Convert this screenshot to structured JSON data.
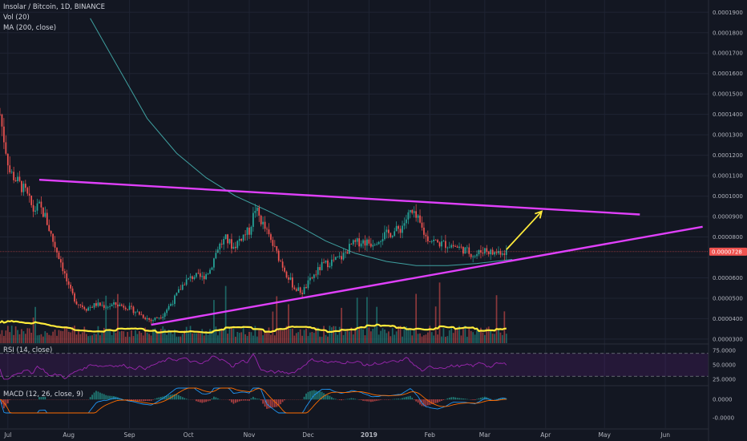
{
  "header": {
    "symbol_line": "Insolar / Bitcoin, 1D, BINANCE",
    "vol_line": "Vol (20)",
    "ma_line": "MA (200, close)"
  },
  "panes": {
    "rsi_label": "RSI (14, close)",
    "macd_label": "MACD (12, 26, close, 9)"
  },
  "colors": {
    "background": "#131722",
    "up": "#26a69a",
    "down": "#ef5350",
    "triangle": "#e040fb",
    "arrow": "#ffeb3b",
    "volume_ma": "#ffeb3b",
    "ma200": "#3fa0a0",
    "rsi_line": "#9c27b0",
    "macd_line": "#2196f3",
    "signal_line": "#ff6d00",
    "price_marker": "#ef5350"
  },
  "chart_data": [
    {
      "type": "candlestick",
      "title": "Insolar / Bitcoin, 1D, BINANCE",
      "x_range": [
        "2018-06-27",
        "2019-06-23"
      ],
      "y_range": [
        2.8e-05,
        0.000196
      ],
      "y_ticks": [
        "0.0000300",
        "0.0000400",
        "0.0000500",
        "0.0000600",
        "0.0000700",
        "0.0000800",
        "0.0000900",
        "0.0001000",
        "0.0001100",
        "0.0001200",
        "0.0001300",
        "0.0001400",
        "0.0001500",
        "0.0001600",
        "0.0001700",
        "0.0001800",
        "0.0001900"
      ],
      "x_ticks": [
        {
          "label": "Jul",
          "date": "2018-07-01"
        },
        {
          "label": "Aug",
          "date": "2018-08-01"
        },
        {
          "label": "Sep",
          "date": "2018-09-01"
        },
        {
          "label": "Oct",
          "date": "2018-10-01"
        },
        {
          "label": "Nov",
          "date": "2018-11-01"
        },
        {
          "label": "Dec",
          "date": "2018-12-01"
        },
        {
          "label": "2019",
          "date": "2019-01-01"
        },
        {
          "label": "Feb",
          "date": "2019-02-01"
        },
        {
          "label": "Mar",
          "date": "2019-03-01"
        },
        {
          "label": "Apr",
          "date": "2019-04-01"
        },
        {
          "label": "May",
          "date": "2019-05-01"
        },
        {
          "label": "Jun",
          "date": "2019-06-01"
        }
      ],
      "last_price": "0.0000728",
      "close_path": [
        [
          "2018-06-27",
          0.00014
        ],
        [
          "2018-06-29",
          0.000128
        ],
        [
          "2018-07-02",
          0.000112
        ],
        [
          "2018-07-06",
          0.000107
        ],
        [
          "2018-07-10",
          0.000102
        ],
        [
          "2018-07-14",
          9.3e-05
        ],
        [
          "2018-07-17",
          9.5e-05
        ],
        [
          "2018-07-20",
          9e-05
        ],
        [
          "2018-07-24",
          7.8e-05
        ],
        [
          "2018-07-28",
          6.8e-05
        ],
        [
          "2018-08-01",
          5.5e-05
        ],
        [
          "2018-08-05",
          4.8e-05
        ],
        [
          "2018-08-10",
          4.5e-05
        ],
        [
          "2018-08-15",
          4.7e-05
        ],
        [
          "2018-08-20",
          4.6e-05
        ],
        [
          "2018-08-25",
          4.7e-05
        ],
        [
          "2018-08-30",
          4.6e-05
        ],
        [
          "2018-09-05",
          4.3e-05
        ],
        [
          "2018-09-12",
          3.9e-05
        ],
        [
          "2018-09-18",
          4.2e-05
        ],
        [
          "2018-09-24",
          5e-05
        ],
        [
          "2018-09-29",
          5.8e-05
        ],
        [
          "2018-10-04",
          6.1e-05
        ],
        [
          "2018-10-08",
          6e-05
        ],
        [
          "2018-10-12",
          6.4e-05
        ],
        [
          "2018-10-16",
          7.5e-05
        ],
        [
          "2018-10-20",
          7.9e-05
        ],
        [
          "2018-10-24",
          7.5e-05
        ],
        [
          "2018-10-28",
          8e-05
        ],
        [
          "2018-11-01",
          8.3e-05
        ],
        [
          "2018-11-04",
          9.4e-05
        ],
        [
          "2018-11-08",
          8.6e-05
        ],
        [
          "2018-11-12",
          7.8e-05
        ],
        [
          "2018-11-16",
          7e-05
        ],
        [
          "2018-11-20",
          6.2e-05
        ],
        [
          "2018-11-24",
          5.5e-05
        ],
        [
          "2018-11-28",
          5.3e-05
        ],
        [
          "2018-12-03",
          6e-05
        ],
        [
          "2018-12-08",
          6.6e-05
        ],
        [
          "2018-12-13",
          6.8e-05
        ],
        [
          "2018-12-18",
          7e-05
        ],
        [
          "2018-12-23",
          7.6e-05
        ],
        [
          "2018-12-28",
          7.8e-05
        ],
        [
          "2019-01-02",
          7.7e-05
        ],
        [
          "2019-01-07",
          8e-05
        ],
        [
          "2019-01-12",
          8.2e-05
        ],
        [
          "2019-01-17",
          8.4e-05
        ],
        [
          "2019-01-22",
          9.2e-05
        ],
        [
          "2019-01-26",
          8.8e-05
        ],
        [
          "2019-01-30",
          8e-05
        ],
        [
          "2019-02-05",
          7.7e-05
        ],
        [
          "2019-02-12",
          7.6e-05
        ],
        [
          "2019-02-18",
          7.4e-05
        ],
        [
          "2019-02-24",
          7.1e-05
        ],
        [
          "2019-03-01",
          7.4e-05
        ],
        [
          "2019-03-05",
          7.2e-05
        ],
        [
          "2019-03-09",
          7.3e-05
        ],
        [
          "2019-03-12",
          7.28e-05
        ]
      ],
      "ma200_path": [
        [
          "2018-08-12",
          0.000187
        ],
        [
          "2018-08-25",
          0.000165
        ],
        [
          "2018-09-10",
          0.000138
        ],
        [
          "2018-09-25",
          0.000121
        ],
        [
          "2018-10-10",
          0.000109
        ],
        [
          "2018-10-25",
          0.0001
        ],
        [
          "2018-11-10",
          9.3e-05
        ],
        [
          "2018-11-25",
          8.6e-05
        ],
        [
          "2018-12-10",
          7.8e-05
        ],
        [
          "2018-12-25",
          7.2e-05
        ],
        [
          "2019-01-10",
          6.8e-05
        ],
        [
          "2019-01-25",
          6.6e-05
        ],
        [
          "2019-02-10",
          6.6e-05
        ],
        [
          "2019-02-25",
          6.7e-05
        ],
        [
          "2019-03-15",
          6.9e-05
        ]
      ],
      "drawings": {
        "upper_trendline": [
          [
            "2018-07-17",
            0.000108
          ],
          [
            "2019-05-19",
            9.1e-05
          ]
        ],
        "lower_trendline": [
          [
            "2018-09-12",
            3.7e-05
          ],
          [
            "2019-06-20",
            8.5e-05
          ]
        ],
        "arrow": [
          [
            "2019-03-12",
            7.38e-05
          ],
          [
            "2019-03-30",
            9.25e-05
          ]
        ]
      }
    },
    {
      "type": "bar",
      "title": "Vol (20)",
      "note": "volume histogram at the bottom of the price pane with a 20-period moving average"
    },
    {
      "type": "line",
      "title": "RSI (14, close)",
      "y_ticks": [
        "75.0000",
        "50.0000",
        "25.0000"
      ],
      "y_range": [
        15,
        85
      ],
      "bands": [
        30,
        70
      ]
    },
    {
      "type": "line",
      "title": "MACD (12, 26, close, 9)",
      "y_ticks": [
        "0.0000",
        "-0.0000"
      ]
    }
  ]
}
